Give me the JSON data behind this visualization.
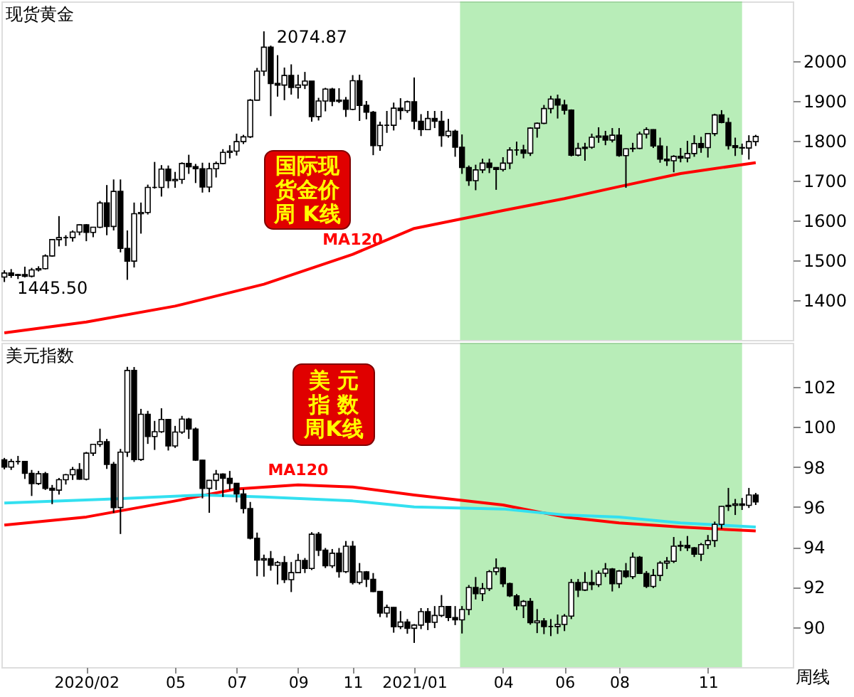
{
  "chart_data": [
    {
      "type": "candlestick",
      "title": "现货黄金",
      "x": [
        "2019-11-11",
        "2019-11-18",
        "2019-11-25",
        "2019-12-02",
        "2019-12-09",
        "2019-12-16",
        "2019-12-23",
        "2019-12-30",
        "2020-01-06",
        "2020-01-13",
        "2020-01-20",
        "2020-01-27",
        "2020-02-03",
        "2020-02-10",
        "2020-02-17",
        "2020-02-24",
        "2020-03-02",
        "2020-03-09",
        "2020-03-16",
        "2020-03-23",
        "2020-03-30",
        "2020-04-06",
        "2020-04-13",
        "2020-04-20",
        "2020-04-27",
        "2020-05-04",
        "2020-05-11",
        "2020-05-18",
        "2020-05-25",
        "2020-06-01",
        "2020-06-08",
        "2020-06-15",
        "2020-06-22",
        "2020-06-29",
        "2020-07-06",
        "2020-07-13",
        "2020-07-20",
        "2020-07-27",
        "2020-08-03",
        "2020-08-10",
        "2020-08-17",
        "2020-08-24",
        "2020-08-31",
        "2020-09-07",
        "2020-09-14",
        "2020-09-21",
        "2020-09-28",
        "2020-10-05",
        "2020-10-12",
        "2020-10-19",
        "2020-10-26",
        "2020-11-02",
        "2020-11-09",
        "2020-11-16",
        "2020-11-23",
        "2020-11-30",
        "2020-12-07",
        "2020-12-14",
        "2020-12-21",
        "2020-12-28",
        "2021-01-04",
        "2021-01-11",
        "2021-01-18",
        "2021-01-25",
        "2021-02-01",
        "2021-02-08",
        "2021-02-15",
        "2021-02-22",
        "2021-03-01",
        "2021-03-08",
        "2021-03-15",
        "2021-03-22",
        "2021-03-29",
        "2021-04-05",
        "2021-04-12",
        "2021-04-19",
        "2021-04-26",
        "2021-05-03",
        "2021-05-10",
        "2021-05-17",
        "2021-05-24",
        "2021-05-31",
        "2021-06-07",
        "2021-06-14",
        "2021-06-21",
        "2021-06-28",
        "2021-07-05",
        "2021-07-12",
        "2021-07-19",
        "2021-07-26",
        "2021-08-02",
        "2021-08-09",
        "2021-08-16",
        "2021-08-23",
        "2021-08-30",
        "2021-09-06",
        "2021-09-13",
        "2021-09-20",
        "2021-09-27",
        "2021-10-04",
        "2021-10-11",
        "2021-10-18",
        "2021-10-25",
        "2021-11-01",
        "2021-11-08",
        "2021-11-15",
        "2021-11-22",
        "2021-11-29",
        "2021-12-06",
        "2021-12-13",
        "2021-12-20"
      ],
      "ohlc": [
        [
          1458,
          1475,
          1445.5,
          1468
        ],
        [
          1468,
          1478,
          1456,
          1462
        ],
        [
          1462,
          1466,
          1453,
          1464
        ],
        [
          1464,
          1484,
          1457,
          1460
        ],
        [
          1460,
          1481,
          1457,
          1476
        ],
        [
          1476,
          1485,
          1472,
          1479
        ],
        [
          1479,
          1515,
          1477,
          1511
        ],
        [
          1511,
          1553,
          1509,
          1552
        ],
        [
          1552,
          1611,
          1535,
          1557
        ],
        [
          1557,
          1563,
          1536,
          1557
        ],
        [
          1557,
          1575,
          1547,
          1571
        ],
        [
          1571,
          1590,
          1563,
          1589
        ],
        [
          1589,
          1591,
          1548,
          1570
        ],
        [
          1570,
          1584,
          1558,
          1583
        ],
        [
          1583,
          1649,
          1581,
          1644
        ],
        [
          1644,
          1689,
          1563,
          1585
        ],
        [
          1585,
          1703,
          1575,
          1673
        ],
        [
          1673,
          1703,
          1520,
          1530
        ],
        [
          1530,
          1575,
          1451,
          1498
        ],
        [
          1498,
          1645,
          1482,
          1617
        ],
        [
          1617,
          1645,
          1567,
          1620
        ],
        [
          1620,
          1690,
          1615,
          1683
        ],
        [
          1683,
          1747,
          1680,
          1683
        ],
        [
          1683,
          1739,
          1660,
          1729
        ],
        [
          1729,
          1738,
          1681,
          1700
        ],
        [
          1700,
          1722,
          1682,
          1703
        ],
        [
          1703,
          1746,
          1692,
          1743
        ],
        [
          1743,
          1765,
          1717,
          1735
        ],
        [
          1735,
          1742,
          1694,
          1730
        ],
        [
          1730,
          1745,
          1670,
          1684
        ],
        [
          1684,
          1745,
          1671,
          1730
        ],
        [
          1730,
          1748,
          1708,
          1743
        ],
        [
          1743,
          1779,
          1741,
          1771
        ],
        [
          1771,
          1789,
          1756,
          1774
        ],
        [
          1774,
          1818,
          1763,
          1798
        ],
        [
          1798,
          1815,
          1792,
          1810
        ],
        [
          1810,
          1905,
          1807,
          1902
        ],
        [
          1902,
          1983,
          1902,
          1975
        ],
        [
          1975,
          2074.87,
          1963,
          2035
        ],
        [
          2035,
          2039,
          1862,
          1944
        ],
        [
          1944,
          2015,
          1911,
          1940
        ],
        [
          1940,
          1984,
          1902,
          1964
        ],
        [
          1964,
          1992,
          1916,
          1934
        ],
        [
          1934,
          1966,
          1906,
          1940
        ],
        [
          1940,
          1973,
          1930,
          1950
        ],
        [
          1950,
          1950,
          1848,
          1861
        ],
        [
          1861,
          1908,
          1851,
          1900
        ],
        [
          1900,
          1933,
          1874,
          1930
        ],
        [
          1930,
          1933,
          1887,
          1899
        ],
        [
          1899,
          1932,
          1895,
          1902
        ],
        [
          1902,
          1910,
          1860,
          1879
        ],
        [
          1879,
          1965,
          1877,
          1951
        ],
        [
          1951,
          1966,
          1850,
          1889
        ],
        [
          1889,
          1900,
          1854,
          1872
        ],
        [
          1872,
          1875,
          1764,
          1788
        ],
        [
          1788,
          1848,
          1775,
          1839
        ],
        [
          1839,
          1875,
          1820,
          1839
        ],
        [
          1839,
          1896,
          1826,
          1882
        ],
        [
          1882,
          1907,
          1853,
          1876
        ],
        [
          1876,
          1901,
          1870,
          1898
        ],
        [
          1898,
          1959,
          1829,
          1849
        ],
        [
          1849,
          1867,
          1812,
          1828
        ],
        [
          1828,
          1875,
          1827,
          1856
        ],
        [
          1856,
          1875,
          1832,
          1849
        ],
        [
          1849,
          1875,
          1785,
          1813
        ],
        [
          1813,
          1855,
          1808,
          1824
        ],
        [
          1824,
          1828,
          1760,
          1784
        ],
        [
          1784,
          1816,
          1717,
          1733
        ],
        [
          1733,
          1738,
          1687,
          1700
        ],
        [
          1700,
          1740,
          1676,
          1727
        ],
        [
          1727,
          1755,
          1719,
          1744
        ],
        [
          1744,
          1755,
          1719,
          1733
        ],
        [
          1733,
          1733,
          1677,
          1728
        ],
        [
          1728,
          1759,
          1723,
          1744
        ],
        [
          1744,
          1784,
          1729,
          1777
        ],
        [
          1777,
          1798,
          1763,
          1777
        ],
        [
          1777,
          1790,
          1756,
          1769
        ],
        [
          1769,
          1834,
          1762,
          1832
        ],
        [
          1832,
          1846,
          1808,
          1844
        ],
        [
          1844,
          1890,
          1842,
          1881
        ],
        [
          1881,
          1913,
          1869,
          1905
        ],
        [
          1905,
          1916,
          1856,
          1890
        ],
        [
          1890,
          1903,
          1866,
          1877
        ],
        [
          1877,
          1879,
          1761,
          1764
        ],
        [
          1764,
          1795,
          1761,
          1781
        ],
        [
          1781,
          1795,
          1750,
          1784
        ],
        [
          1784,
          1818,
          1780,
          1809
        ],
        [
          1809,
          1834,
          1795,
          1812
        ],
        [
          1812,
          1825,
          1789,
          1802
        ],
        [
          1802,
          1832,
          1796,
          1814
        ],
        [
          1814,
          1832,
          1760,
          1763
        ],
        [
          1763,
          1781,
          1682,
          1780
        ],
        [
          1780,
          1795,
          1772,
          1781
        ],
        [
          1781,
          1823,
          1779,
          1817
        ],
        [
          1817,
          1834,
          1806,
          1828
        ],
        [
          1828,
          1829,
          1782,
          1787
        ],
        [
          1787,
          1808,
          1745,
          1754
        ],
        [
          1754,
          1787,
          1737,
          1750
        ],
        [
          1750,
          1764,
          1721,
          1761
        ],
        [
          1761,
          1782,
          1746,
          1757
        ],
        [
          1757,
          1800,
          1746,
          1768
        ],
        [
          1768,
          1814,
          1760,
          1793
        ],
        [
          1793,
          1810,
          1770,
          1783
        ],
        [
          1783,
          1818,
          1758,
          1818
        ],
        [
          1818,
          1868,
          1812,
          1865
        ],
        [
          1865,
          1877,
          1844,
          1846
        ],
        [
          1846,
          1858,
          1778,
          1788
        ],
        [
          1788,
          1808,
          1762,
          1783
        ],
        [
          1783,
          1793,
          1765,
          1782
        ],
        [
          1782,
          1814,
          1753,
          1798
        ],
        [
          1798,
          1815,
          1787,
          1811
        ]
      ],
      "series": [
        {
          "name": "MA120",
          "type": "line",
          "color": "#ff0000",
          "x": [
            "2019-11-11",
            "2020-02-03",
            "2020-05-04",
            "2020-08-03",
            "2020-11-02",
            "2021-01-04",
            "2021-04-05",
            "2021-06-07",
            "2021-08-02",
            "2021-10-04",
            "2021-12-20"
          ],
          "values": [
            1318,
            1345,
            1385,
            1440,
            1515,
            1580,
            1625,
            1655,
            1685,
            1718,
            1745
          ]
        }
      ],
      "bands": [
        {
          "axis": "x",
          "from": "2021-02-20",
          "to": "2021-12-06",
          "color": "#33cc33"
        }
      ],
      "annotations": [
        "国际现货金价周 K线",
        {
          "text": "2074.87",
          "x": "2020-08-03",
          "y": 2074.87
        },
        {
          "text": "1445.50",
          "x": "2019-11-11",
          "y": 1445.5
        }
      ],
      "xlim": [
        "2019-11-08",
        "2022-01-27"
      ],
      "ylim": [
        1300,
        2150
      ],
      "yticks": [
        1400,
        1500,
        1600,
        1700,
        1800,
        1900,
        2000
      ],
      "tick_labels": "y"
    },
    {
      "type": "candlestick",
      "title": "美元指数",
      "x": [
        "2019-11-11",
        "2019-11-18",
        "2019-11-25",
        "2019-12-02",
        "2019-12-09",
        "2019-12-16",
        "2019-12-23",
        "2019-12-30",
        "2020-01-06",
        "2020-01-13",
        "2020-01-20",
        "2020-01-27",
        "2020-02-03",
        "2020-02-10",
        "2020-02-17",
        "2020-02-24",
        "2020-03-02",
        "2020-03-09",
        "2020-03-16",
        "2020-03-23",
        "2020-03-30",
        "2020-04-06",
        "2020-04-13",
        "2020-04-20",
        "2020-04-27",
        "2020-05-04",
        "2020-05-11",
        "2020-05-18",
        "2020-05-25",
        "2020-06-01",
        "2020-06-08",
        "2020-06-15",
        "2020-06-22",
        "2020-06-29",
        "2020-07-06",
        "2020-07-13",
        "2020-07-20",
        "2020-07-27",
        "2020-08-03",
        "2020-08-10",
        "2020-08-17",
        "2020-08-24",
        "2020-08-31",
        "2020-09-07",
        "2020-09-14",
        "2020-09-21",
        "2020-09-28",
        "2020-10-05",
        "2020-10-12",
        "2020-10-19",
        "2020-10-26",
        "2020-11-02",
        "2020-11-09",
        "2020-11-16",
        "2020-11-23",
        "2020-11-30",
        "2020-12-07",
        "2020-12-14",
        "2020-12-21",
        "2020-12-28",
        "2021-01-04",
        "2021-01-11",
        "2021-01-18",
        "2021-01-25",
        "2021-02-01",
        "2021-02-08",
        "2021-02-15",
        "2021-02-22",
        "2021-03-01",
        "2021-03-08",
        "2021-03-15",
        "2021-03-22",
        "2021-03-29",
        "2021-04-05",
        "2021-04-12",
        "2021-04-19",
        "2021-04-26",
        "2021-05-03",
        "2021-05-10",
        "2021-05-17",
        "2021-05-24",
        "2021-05-31",
        "2021-06-07",
        "2021-06-14",
        "2021-06-21",
        "2021-06-28",
        "2021-07-05",
        "2021-07-12",
        "2021-07-19",
        "2021-07-26",
        "2021-08-02",
        "2021-08-09",
        "2021-08-16",
        "2021-08-23",
        "2021-08-30",
        "2021-09-06",
        "2021-09-13",
        "2021-09-20",
        "2021-09-27",
        "2021-10-04",
        "2021-10-11",
        "2021-10-18",
        "2021-10-25",
        "2021-11-01",
        "2021-11-08",
        "2021-11-15",
        "2021-11-22",
        "2021-11-29",
        "2021-12-06",
        "2021-12-13",
        "2021-12-20"
      ],
      "ohlc": [
        [
          98.35,
          98.45,
          97.88,
          97.99
        ],
        [
          97.99,
          98.4,
          97.85,
          98.27
        ],
        [
          98.27,
          98.55,
          98.12,
          98.27
        ],
        [
          98.27,
          98.3,
          97.4,
          97.68
        ],
        [
          97.68,
          97.85,
          96.55,
          97.17
        ],
        [
          97.17,
          97.8,
          97.1,
          97.66
        ],
        [
          97.66,
          97.75,
          96.85,
          96.93
        ],
        [
          96.93,
          97.1,
          96.14,
          96.84
        ],
        [
          96.84,
          97.45,
          96.62,
          97.36
        ],
        [
          97.36,
          97.65,
          97.12,
          97.61
        ],
        [
          97.61,
          98.0,
          97.35,
          97.87
        ],
        [
          97.87,
          98.19,
          97.36,
          97.39
        ],
        [
          97.39,
          98.75,
          97.33,
          98.69
        ],
        [
          98.69,
          99.15,
          98.55,
          99.13
        ],
        [
          99.13,
          99.91,
          99.0,
          99.26
        ],
        [
          99.26,
          99.4,
          97.9,
          98.13
        ],
        [
          98.13,
          98.25,
          95.7,
          95.97
        ],
        [
          95.97,
          98.9,
          94.65,
          98.74
        ],
        [
          98.74,
          103.0,
          98.5,
          102.82
        ],
        [
          102.82,
          102.99,
          98.25,
          98.37
        ],
        [
          98.37,
          100.9,
          98.3,
          100.63
        ],
        [
          100.63,
          100.8,
          99.15,
          99.52
        ],
        [
          99.52,
          100.3,
          98.85,
          99.76
        ],
        [
          99.76,
          100.93,
          99.7,
          100.37
        ],
        [
          100.37,
          100.4,
          98.82,
          99.05
        ],
        [
          99.05,
          100.05,
          98.95,
          99.74
        ],
        [
          99.74,
          100.55,
          99.65,
          100.39
        ],
        [
          100.39,
          100.45,
          99.4,
          99.89
        ],
        [
          99.89,
          99.97,
          98.3,
          98.34
        ],
        [
          98.34,
          98.35,
          96.43,
          96.93
        ],
        [
          96.93,
          97.35,
          95.71,
          97.33
        ],
        [
          97.33,
          97.85,
          96.85,
          97.64
        ],
        [
          97.64,
          97.68,
          96.5,
          97.43
        ],
        [
          97.43,
          97.8,
          96.85,
          97.18
        ],
        [
          97.18,
          97.2,
          96.23,
          96.65
        ],
        [
          96.65,
          96.9,
          95.68,
          95.92
        ],
        [
          95.92,
          96.25,
          94.38,
          94.44
        ],
        [
          94.44,
          94.72,
          92.54,
          93.35
        ],
        [
          93.35,
          93.62,
          92.52,
          93.42
        ],
        [
          93.42,
          93.8,
          92.82,
          93.09
        ],
        [
          93.09,
          93.3,
          92.13,
          93.22
        ],
        [
          93.22,
          93.55,
          92.2,
          92.37
        ],
        [
          92.37,
          93.25,
          91.75,
          92.72
        ],
        [
          92.72,
          93.66,
          92.7,
          93.33
        ],
        [
          93.33,
          93.45,
          92.7,
          92.93
        ],
        [
          92.93,
          94.74,
          92.85,
          94.64
        ],
        [
          94.64,
          94.75,
          93.55,
          93.84
        ],
        [
          93.84,
          93.95,
          92.95,
          93.06
        ],
        [
          93.06,
          93.9,
          92.95,
          93.69
        ],
        [
          93.69,
          93.95,
          92.47,
          92.77
        ],
        [
          92.77,
          94.3,
          92.7,
          94.04
        ],
        [
          94.04,
          94.3,
          92.13,
          92.23
        ],
        [
          92.23,
          93.2,
          92.13,
          92.76
        ],
        [
          92.76,
          92.8,
          92.0,
          92.39
        ],
        [
          92.39,
          92.7,
          91.75,
          91.78
        ],
        [
          91.78,
          91.8,
          90.5,
          90.7
        ],
        [
          90.7,
          91.12,
          90.48,
          90.98
        ],
        [
          90.98,
          91.0,
          89.72,
          90.02
        ],
        [
          90.02,
          90.8,
          89.9,
          90.25
        ],
        [
          90.25,
          90.4,
          89.67,
          89.94
        ],
        [
          89.94,
          90.15,
          89.21,
          90.1
        ],
        [
          90.1,
          90.95,
          89.9,
          90.77
        ],
        [
          90.77,
          90.95,
          89.85,
          90.24
        ],
        [
          90.24,
          91.05,
          89.95,
          90.58
        ],
        [
          90.58,
          91.6,
          90.5,
          91.03
        ],
        [
          91.03,
          91.05,
          90.3,
          90.48
        ],
        [
          90.48,
          91.05,
          90.1,
          90.36
        ],
        [
          90.36,
          91.05,
          89.68,
          90.88
        ],
        [
          90.88,
          92.1,
          90.6,
          91.98
        ],
        [
          91.98,
          92.5,
          91.38,
          91.67
        ],
        [
          91.67,
          92.2,
          91.3,
          91.92
        ],
        [
          91.92,
          92.85,
          91.8,
          92.77
        ],
        [
          92.77,
          93.43,
          92.6,
          92.95
        ],
        [
          92.95,
          93.0,
          92.0,
          92.17
        ],
        [
          92.17,
          92.22,
          91.5,
          91.56
        ],
        [
          91.56,
          91.65,
          90.85,
          91.07
        ],
        [
          91.07,
          91.35,
          90.45,
          91.28
        ],
        [
          91.28,
          91.45,
          90.12,
          90.22
        ],
        [
          90.22,
          90.9,
          89.7,
          90.31
        ],
        [
          90.31,
          90.45,
          89.65,
          90.03
        ],
        [
          90.03,
          90.4,
          89.55,
          90.03
        ],
        [
          90.03,
          90.63,
          89.66,
          90.13
        ],
        [
          90.13,
          90.65,
          89.8,
          90.55
        ],
        [
          90.55,
          92.4,
          90.4,
          92.23
        ],
        [
          92.23,
          92.4,
          91.5,
          91.85
        ],
        [
          91.85,
          92.75,
          91.8,
          92.23
        ],
        [
          92.23,
          92.85,
          91.85,
          92.12
        ],
        [
          92.12,
          92.82,
          92.0,
          92.69
        ],
        [
          92.69,
          93.2,
          92.5,
          92.9
        ],
        [
          92.9,
          92.95,
          91.78,
          92.17
        ],
        [
          92.17,
          92.85,
          91.95,
          92.8
        ],
        [
          92.8,
          93.2,
          92.45,
          92.52
        ],
        [
          92.52,
          93.73,
          92.4,
          93.49
        ],
        [
          93.49,
          93.55,
          92.65,
          92.68
        ],
        [
          92.68,
          92.8,
          91.95,
          92.03
        ],
        [
          92.03,
          92.9,
          91.95,
          92.58
        ],
        [
          92.58,
          93.3,
          92.3,
          93.2
        ],
        [
          93.2,
          93.5,
          92.9,
          93.29
        ],
        [
          93.29,
          94.5,
          93.2,
          94.04
        ],
        [
          94.04,
          94.3,
          93.8,
          94.08
        ],
        [
          94.08,
          94.55,
          93.8,
          93.96
        ],
        [
          93.96,
          94.0,
          93.5,
          93.64
        ],
        [
          93.64,
          94.2,
          93.3,
          94.12
        ],
        [
          94.12,
          94.6,
          93.9,
          94.32
        ],
        [
          94.32,
          95.27,
          94.0,
          95.13
        ],
        [
          95.13,
          96.05,
          94.9,
          96.03
        ],
        [
          96.03,
          96.95,
          95.8,
          96.08
        ],
        [
          96.08,
          96.4,
          95.6,
          96.15
        ],
        [
          96.15,
          96.45,
          95.85,
          96.08
        ],
        [
          96.08,
          96.95,
          95.95,
          96.6
        ],
        [
          96.6,
          96.7,
          96.1,
          96.25
        ]
      ],
      "series": [
        {
          "name": "MA120",
          "type": "line",
          "color": "#ff0000",
          "x": [
            "2019-11-11",
            "2020-02-03",
            "2020-05-04",
            "2020-07-06",
            "2020-09-07",
            "2020-11-02",
            "2021-01-04",
            "2021-04-05",
            "2021-06-07",
            "2021-08-02",
            "2021-10-04",
            "2021-12-20"
          ],
          "values": [
            95.1,
            95.5,
            96.3,
            96.9,
            97.1,
            97.0,
            96.6,
            96.1,
            95.5,
            95.2,
            95.0,
            94.8
          ]
        },
        {
          "type": "line",
          "color": "#33e0f0",
          "x": [
            "2019-11-11",
            "2020-03-02",
            "2020-06-01",
            "2020-08-03",
            "2020-11-02",
            "2021-01-04",
            "2021-04-05",
            "2021-06-07",
            "2021-08-02",
            "2021-10-04",
            "2021-12-20"
          ],
          "values": [
            96.2,
            96.4,
            96.6,
            96.5,
            96.3,
            96.0,
            95.9,
            95.6,
            95.5,
            95.2,
            95.0
          ]
        }
      ],
      "bands": [
        {
          "axis": "x",
          "from": "2021-02-20",
          "to": "2021-12-06",
          "color": "#33cc33"
        }
      ],
      "annotations": [
        "美 元指 数周K线",
        "周线"
      ],
      "xlim": [
        "2019-11-08",
        "2022-01-27"
      ],
      "ylim": [
        88,
        104.2
      ],
      "yticks": [
        90,
        92,
        94,
        96,
        98,
        100,
        102
      ],
      "xticks": [
        {
          "value": "2020-02-03",
          "label": "2020/02"
        },
        {
          "value": "2020-05-04",
          "label": "05"
        },
        {
          "value": "2020-07-06",
          "label": "07"
        },
        {
          "value": "2020-09-07",
          "label": "09"
        },
        {
          "value": "2020-11-02",
          "label": "11"
        },
        {
          "value": "2021-01-04",
          "label": "2021/01"
        },
        {
          "value": "2021-04-05",
          "label": "04"
        },
        {
          "value": "2021-06-07",
          "label": "06"
        },
        {
          "value": "2021-08-02",
          "label": "08"
        },
        {
          "value": "2021-11-01",
          "label": "11"
        }
      ]
    }
  ]
}
